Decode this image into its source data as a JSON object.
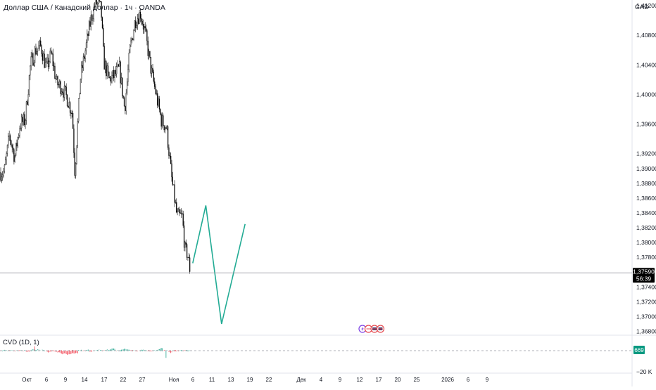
{
  "header": {
    "title": "Доллар США / Канадский доллар · 1ч · OANDA",
    "currency": "CAD"
  },
  "price_badge": {
    "price": "1,37590",
    "countdown": "56:39"
  },
  "indicator": {
    "label": "CVD (1D, 1)",
    "value_badge": "669",
    "axis_label": "−20 K"
  },
  "event_icons": [
    {
      "name": "lightning-event-icon",
      "color": "#7b3fe4"
    },
    {
      "name": "ca-flag-event-icon",
      "color": "#e5474d"
    },
    {
      "name": "us-flag-event-icon",
      "color": "#e5474d"
    },
    {
      "name": "us-flag-event-icon",
      "color": "#e5474d"
    }
  ],
  "colors": {
    "candle": "#000000",
    "projection": "#22ab94",
    "cvd_up": "#089981",
    "cvd_down": "#f23645",
    "badge_price_bg": "#000000",
    "badge_cvd_bg": "#089981"
  },
  "chart_data": {
    "type": "line",
    "title": "Доллар США / Канадский доллар · 1ч · OANDA",
    "y_unit": "CAD",
    "y_ticks": [
      "1,41200",
      "1,40800",
      "1,40400",
      "1,40000",
      "1,39600",
      "1,39200",
      "1,39000",
      "1,38800",
      "1,38600",
      "1,38400",
      "1,38200",
      "1,38000",
      "1,37800",
      "1,37400",
      "1,37200",
      "1,37000",
      "1,36800"
    ],
    "x_ticks": [
      "Окт",
      "6",
      "9",
      "14",
      "17",
      "22",
      "27",
      "Ноя",
      "6",
      "11",
      "13",
      "19",
      "22",
      "Дек",
      "4",
      "9",
      "12",
      "17",
      "20",
      "25",
      "2026",
      "6",
      "9"
    ],
    "ylim": [
      1.367,
      1.415
    ],
    "last_price": 1.3759,
    "price_path": [
      {
        "date": "2025-09-30",
        "close": 1.3895
      },
      {
        "date": "2025-10-02",
        "close": 1.3945
      },
      {
        "date": "2025-10-04",
        "close": 1.3915
      },
      {
        "date": "2025-10-06",
        "close": 1.396
      },
      {
        "date": "2025-10-08",
        "close": 1.3965
      },
      {
        "date": "2025-10-10",
        "close": 1.404
      },
      {
        "date": "2025-10-12",
        "close": 1.406
      },
      {
        "date": "2025-10-14",
        "close": 1.4065
      },
      {
        "date": "2025-10-16",
        "close": 1.4035
      },
      {
        "date": "2025-10-18",
        "close": 1.4055
      },
      {
        "date": "2025-10-20",
        "close": 1.4015
      },
      {
        "date": "2025-10-22",
        "close": 1.401
      },
      {
        "date": "2025-10-24",
        "close": 1.3995
      },
      {
        "date": "2025-10-26",
        "close": 1.3975
      },
      {
        "date": "2025-10-27",
        "close": 1.3895
      },
      {
        "date": "2025-10-29",
        "close": 1.402
      },
      {
        "date": "2025-10-31",
        "close": 1.406
      },
      {
        "date": "2025-11-02",
        "close": 1.41
      },
      {
        "date": "2025-11-04",
        "close": 1.4125
      },
      {
        "date": "2025-11-06",
        "close": 1.4115
      },
      {
        "date": "2025-11-07",
        "close": 1.4045
      },
      {
        "date": "2025-11-09",
        "close": 1.402
      },
      {
        "date": "2025-11-11",
        "close": 1.4025
      },
      {
        "date": "2025-11-13",
        "close": 1.4035
      },
      {
        "date": "2025-11-15",
        "close": 1.398
      },
      {
        "date": "2025-11-17",
        "close": 1.406
      },
      {
        "date": "2025-11-19",
        "close": 1.41
      },
      {
        "date": "2025-11-21",
        "close": 1.411
      },
      {
        "date": "2025-11-23",
        "close": 1.408
      },
      {
        "date": "2025-11-25",
        "close": 1.4035
      },
      {
        "date": "2025-11-27",
        "close": 1.4
      },
      {
        "date": "2025-11-29",
        "close": 1.3965
      },
      {
        "date": "2025-12-01",
        "close": 1.3955
      },
      {
        "date": "2025-12-03",
        "close": 1.3885
      },
      {
        "date": "2025-12-05",
        "close": 1.3835
      },
      {
        "date": "2025-12-07",
        "close": 1.3835
      },
      {
        "date": "2025-12-08",
        "close": 1.379
      },
      {
        "date": "2025-12-09",
        "close": 1.3785
      },
      {
        "date": "2025-12-10",
        "close": 1.3762
      }
    ],
    "projection": [
      {
        "date": "2025-12-11",
        "price": 1.3772
      },
      {
        "date": "2025-12-16",
        "price": 1.385
      },
      {
        "date": "2025-12-22",
        "price": 1.369
      },
      {
        "date": "2025-12-31",
        "price": 1.3825
      }
    ],
    "cvd": {
      "label": "CVD (1D, 1)",
      "last_value": 669,
      "axis_label": "−20 K"
    }
  }
}
